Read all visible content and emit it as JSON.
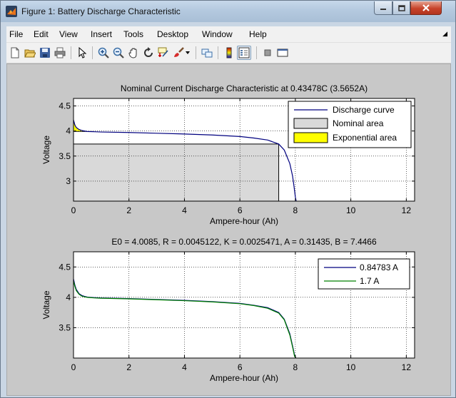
{
  "window": {
    "title": "Figure 1: Battery Discharge Characteristic",
    "buttons": [
      "minimize",
      "maximize",
      "close"
    ]
  },
  "menu": {
    "items": [
      "File",
      "Edit",
      "View",
      "Insert",
      "Tools",
      "Desktop",
      "Window",
      "Help"
    ]
  },
  "toolbar": {
    "icons": [
      "new-figure-icon",
      "open-file-icon",
      "save-icon",
      "print-icon",
      "pointer-icon",
      "zoom-in-icon",
      "zoom-out-icon",
      "pan-icon",
      "rotate-icon",
      "data-cursor-icon",
      "brush-icon",
      "link-plot-icon",
      "colorbar-icon",
      "legend-icon",
      "hide-plot-tools-icon",
      "show-plot-tools-icon"
    ]
  },
  "colors": {
    "discharge": "#00007f",
    "series2": "#008000",
    "nominal_fill": "#d9d9d9",
    "exponential_fill": "#ffff00"
  },
  "chart_data": [
    {
      "type": "area",
      "title": "Nominal Current Discharge Characteristic at 0.43478C (3.5652A)",
      "xlabel": "Ampere-hour (Ah)",
      "ylabel": "Voltage",
      "xlim": [
        0,
        12.3
      ],
      "ylim": [
        2.6,
        4.65
      ],
      "xticks": [
        0,
        2,
        4,
        6,
        8,
        10,
        12
      ],
      "yticks": [
        3,
        3.5,
        4,
        4.5
      ],
      "grid": true,
      "legend": "top-right",
      "legend_entries": [
        "Discharge curve",
        "Nominal area",
        "Exponential area"
      ],
      "series": [
        {
          "name": "Discharge curve",
          "x": [
            0,
            0.05,
            0.1,
            0.2,
            0.3,
            0.4,
            0.5,
            0.75,
            1,
            2,
            3,
            4,
            5,
            6,
            6.5,
            7,
            7.4,
            7.6,
            7.8,
            7.9,
            7.95,
            8.0,
            8.03
          ],
          "y": [
            4.22,
            4.12,
            4.07,
            4.03,
            4.01,
            4.0,
            3.99,
            3.985,
            3.98,
            3.97,
            3.955,
            3.94,
            3.92,
            3.89,
            3.86,
            3.82,
            3.74,
            3.62,
            3.35,
            3.1,
            2.9,
            2.68,
            2.6
          ]
        }
      ],
      "nominal_area": {
        "x_end": 7.4,
        "y_top": 3.74
      },
      "exponential_area": {
        "x_end": 0.5,
        "y_top": 3.99
      }
    },
    {
      "type": "line",
      "title": "E0 = 4.0085, R = 0.0045122, K = 0.0025471, A = 0.31435, B = 7.4466",
      "xlabel": "Ampere-hour (Ah)",
      "ylabel": "Voltage",
      "xlim": [
        0,
        12.3
      ],
      "ylim": [
        3.0,
        4.75
      ],
      "xticks": [
        0,
        2,
        4,
        6,
        8,
        10,
        12
      ],
      "yticks": [
        3.5,
        4,
        4.5
      ],
      "grid": true,
      "legend": "top-right",
      "series": [
        {
          "name": "0.84783 A",
          "x": [
            0,
            0.05,
            0.1,
            0.2,
            0.3,
            0.4,
            0.5,
            0.75,
            1,
            2,
            3,
            4,
            5,
            6,
            6.5,
            7,
            7.4,
            7.6,
            7.8,
            7.9,
            7.97,
            8.02
          ],
          "y": [
            4.3,
            4.2,
            4.13,
            4.06,
            4.03,
            4.015,
            4.005,
            3.995,
            3.99,
            3.98,
            3.965,
            3.95,
            3.93,
            3.9,
            3.87,
            3.83,
            3.75,
            3.64,
            3.4,
            3.2,
            3.05,
            3.0
          ]
        },
        {
          "name": "1.7 A",
          "x": [
            0,
            0.05,
            0.1,
            0.2,
            0.3,
            0.4,
            0.5,
            0.75,
            1,
            2,
            3,
            4,
            5,
            6,
            6.5,
            7,
            7.4,
            7.6,
            7.8,
            7.9,
            7.97,
            8.02
          ],
          "y": [
            4.27,
            4.18,
            4.11,
            4.05,
            4.02,
            4.008,
            4.0,
            3.99,
            3.985,
            3.975,
            3.96,
            3.945,
            3.925,
            3.895,
            3.865,
            3.82,
            3.74,
            3.63,
            3.38,
            3.18,
            3.03,
            3.0
          ]
        }
      ]
    }
  ]
}
